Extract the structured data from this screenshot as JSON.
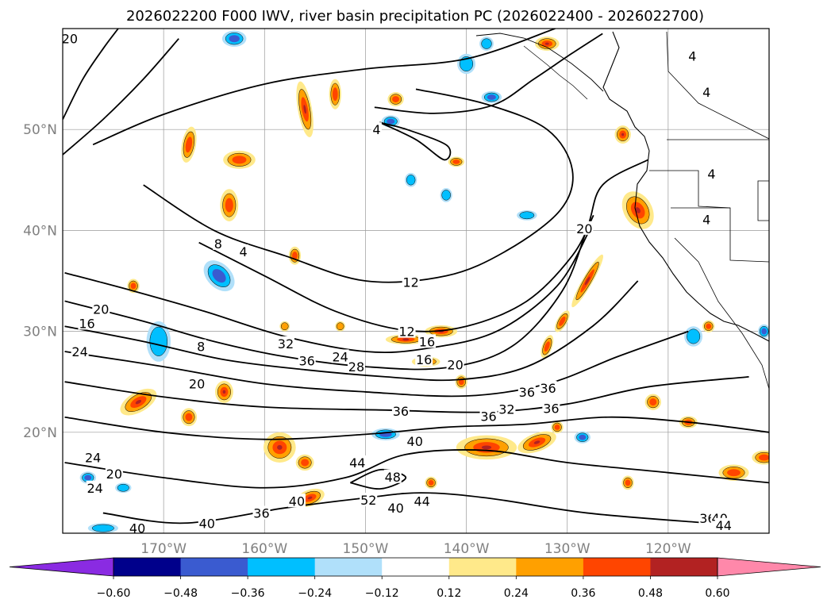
{
  "title": "2026022200 F000 IWV, river basin precipitation PC (2026022400 - 2026022700)",
  "lat_labels": [
    {
      "lat": 50,
      "label": "50°N"
    },
    {
      "lat": 40,
      "label": "40°N"
    },
    {
      "lat": 30,
      "label": "30°N"
    },
    {
      "lat": 20,
      "label": "20°N"
    }
  ],
  "lon_labels": [
    {
      "lon": -170,
      "label": "170°W"
    },
    {
      "lon": -160,
      "label": "160°W"
    },
    {
      "lon": -150,
      "label": "150°W"
    },
    {
      "lon": -140,
      "label": "140°W"
    },
    {
      "lon": -130,
      "label": "130°W"
    },
    {
      "lon": -120,
      "label": "120°W"
    }
  ],
  "colorbar": {
    "colors": [
      "#8a2be2",
      "#00008b",
      "#3a5bd0",
      "#00bfff",
      "#b0e0fa",
      "#ffffff",
      "#ffe98a",
      "#ffa000",
      "#ff4500",
      "#b22222",
      "#ff88aa"
    ],
    "tick_labels": [
      "−0.60",
      "−0.48",
      "−0.36",
      "−0.24",
      "−0.12",
      "0.12",
      "0.24",
      "0.36",
      "0.48",
      "0.60"
    ]
  },
  "contour_labels": [
    {
      "text": "20",
      "lon": -179.3,
      "lat": 59.0
    },
    {
      "text": "4",
      "lon": -148.9,
      "lat": 50.0
    },
    {
      "text": "4",
      "lon": -117.6,
      "lat": 57.3
    },
    {
      "text": "4",
      "lon": -116.2,
      "lat": 53.7
    },
    {
      "text": "4",
      "lon": -115.7,
      "lat": 45.6
    },
    {
      "text": "4",
      "lon": -116.2,
      "lat": 41.1
    },
    {
      "text": "20",
      "lon": -128.3,
      "lat": 40.2
    },
    {
      "text": "12",
      "lon": -145.5,
      "lat": 34.9
    },
    {
      "text": "8",
      "lon": -164.6,
      "lat": 38.7
    },
    {
      "text": "4",
      "lon": -162.1,
      "lat": 37.9
    },
    {
      "text": "12",
      "lon": -145.9,
      "lat": 30.0
    },
    {
      "text": "16",
      "lon": -143.9,
      "lat": 29.0
    },
    {
      "text": "16",
      "lon": -144.2,
      "lat": 27.2
    },
    {
      "text": "20",
      "lon": -141.1,
      "lat": 26.7
    },
    {
      "text": "20",
      "lon": -176.2,
      "lat": 32.2
    },
    {
      "text": "16",
      "lon": -177.6,
      "lat": 30.8
    },
    {
      "text": "24",
      "lon": -178.3,
      "lat": 28.0
    },
    {
      "text": "8",
      "lon": -166.3,
      "lat": 28.5
    },
    {
      "text": "32",
      "lon": -157.9,
      "lat": 28.8
    },
    {
      "text": "36",
      "lon": -155.8,
      "lat": 27.1
    },
    {
      "text": "24",
      "lon": -152.5,
      "lat": 27.5
    },
    {
      "text": "28",
      "lon": -150.9,
      "lat": 26.5
    },
    {
      "text": "20",
      "lon": -166.7,
      "lat": 24.8
    },
    {
      "text": "36",
      "lon": -137.8,
      "lat": 21.6
    },
    {
      "text": "36",
      "lon": -134.0,
      "lat": 24.0
    },
    {
      "text": "36",
      "lon": -131.9,
      "lat": 24.4
    },
    {
      "text": "36",
      "lon": -131.6,
      "lat": 22.4
    },
    {
      "text": "32",
      "lon": -136.0,
      "lat": 22.3
    },
    {
      "text": "36",
      "lon": -146.5,
      "lat": 22.1
    },
    {
      "text": "40",
      "lon": -145.1,
      "lat": 19.1
    },
    {
      "text": "44",
      "lon": -150.8,
      "lat": 17.0
    },
    {
      "text": "48",
      "lon": -147.3,
      "lat": 15.6
    },
    {
      "text": "52",
      "lon": -149.7,
      "lat": 13.3
    },
    {
      "text": "40",
      "lon": -147.0,
      "lat": 12.5
    },
    {
      "text": "44",
      "lon": -144.4,
      "lat": 13.2
    },
    {
      "text": "24",
      "lon": -177.0,
      "lat": 17.5
    },
    {
      "text": "20",
      "lon": -174.9,
      "lat": 15.9
    },
    {
      "text": "24",
      "lon": -176.8,
      "lat": 14.5
    },
    {
      "text": "40",
      "lon": -156.8,
      "lat": 13.2
    },
    {
      "text": "36",
      "lon": -160.3,
      "lat": 12.0
    },
    {
      "text": "40",
      "lon": -165.7,
      "lat": 11.0
    },
    {
      "text": "40",
      "lon": -172.6,
      "lat": 10.5
    },
    {
      "text": "36",
      "lon": -116.1,
      "lat": 11.5
    },
    {
      "text": "40",
      "lon": -114.9,
      "lat": 11.5
    },
    {
      "text": "44",
      "lon": -114.5,
      "lat": 10.8
    }
  ],
  "iwv_contours": [
    {
      "name": "iwv-contour-4-north",
      "points": [
        [
          -149.1,
          52.2
        ],
        [
          -143.2,
          51.6
        ],
        [
          -137.4,
          52.4
        ],
        [
          -133.3,
          55.0
        ],
        [
          -129.6,
          57.5
        ],
        [
          -126.5,
          59.5
        ]
      ]
    },
    {
      "name": "iwv-contour-4-inner",
      "points": [
        [
          -148.6,
          50.7
        ],
        [
          -145.0,
          49.0
        ],
        [
          -142.2,
          47.0
        ],
        [
          -141.9,
          48.4
        ],
        [
          -145.9,
          50.0
        ],
        [
          -148.6,
          50.7
        ]
      ]
    },
    {
      "name": "iwv-contour-8-upper",
      "points": [
        [
          -177.0,
          48.5
        ],
        [
          -170.0,
          51.5
        ],
        [
          -160.0,
          54.5
        ],
        [
          -150.0,
          56.0
        ],
        [
          -140.0,
          57.0
        ],
        [
          -131.2,
          60.0
        ]
      ]
    },
    {
      "name": "iwv-contour-8-loop",
      "points": [
        [
          -172.0,
          44.5
        ],
        [
          -165.0,
          40.0
        ],
        [
          -158.0,
          37.5
        ],
        [
          -150.0,
          35.0
        ],
        [
          -142.0,
          35.5
        ],
        [
          -136.0,
          38.0
        ],
        [
          -130.7,
          42.0
        ],
        [
          -129.5,
          46.0
        ],
        [
          -132.0,
          50.0
        ],
        [
          -138.0,
          52.5
        ],
        [
          -145.0,
          54.0
        ]
      ]
    },
    {
      "name": "iwv-contour-12",
      "points": [
        [
          -166.5,
          38.8
        ],
        [
          -160.0,
          35.5
        ],
        [
          -153.0,
          32.0
        ],
        [
          -146.0,
          30.1
        ],
        [
          -140.0,
          30.5
        ],
        [
          -134.0,
          33.0
        ],
        [
          -129.5,
          37.5
        ],
        [
          -127.4,
          41.5
        ]
      ]
    },
    {
      "name": "iwv-contour-16",
      "points": [
        [
          -179.8,
          35.8
        ],
        [
          -173.0,
          34.0
        ],
        [
          -166.0,
          32.0
        ],
        [
          -158.0,
          29.5
        ],
        [
          -150.0,
          28.0
        ],
        [
          -144.0,
          28.3
        ],
        [
          -137.0,
          30.0
        ],
        [
          -131.0,
          34.5
        ],
        [
          -127.8,
          40.0
        ]
      ]
    },
    {
      "name": "iwv-contour-20",
      "points": [
        [
          -179.8,
          33.0
        ],
        [
          -172.0,
          31.0
        ],
        [
          -165.0,
          29.0
        ],
        [
          -158.0,
          27.5
        ],
        [
          -150.0,
          26.5
        ],
        [
          -142.0,
          26.4
        ],
        [
          -135.5,
          28.5
        ],
        [
          -130.5,
          34.0
        ],
        [
          -128.0,
          40.3
        ],
        [
          -126.5,
          44.5
        ],
        [
          -122.0,
          47.0
        ]
      ]
    },
    {
      "name": "iwv-contour-24",
      "points": [
        [
          -179.8,
          30.5
        ],
        [
          -172.0,
          29.0
        ],
        [
          -164.0,
          27.2
        ],
        [
          -156.0,
          26.2
        ],
        [
          -148.0,
          25.5
        ],
        [
          -141.0,
          25.2
        ],
        [
          -134.0,
          26.5
        ],
        [
          -127.5,
          30.5
        ],
        [
          -123.0,
          35.0
        ]
      ]
    },
    {
      "name": "iwv-contour-28",
      "points": [
        [
          -179.8,
          28.0
        ],
        [
          -170.0,
          26.5
        ],
        [
          -160.0,
          24.8
        ],
        [
          -150.0,
          24.0
        ],
        [
          -140.0,
          23.6
        ],
        [
          -132.0,
          24.8
        ],
        [
          -125.0,
          27.5
        ],
        [
          -118.0,
          30.0
        ]
      ]
    },
    {
      "name": "iwv-contour-32",
      "points": [
        [
          -179.8,
          25.0
        ],
        [
          -170.0,
          23.5
        ],
        [
          -160.0,
          22.5
        ],
        [
          -148.0,
          22.2
        ],
        [
          -138.0,
          22.0
        ],
        [
          -130.0,
          22.8
        ],
        [
          -122.0,
          24.5
        ],
        [
          -112.0,
          25.5
        ]
      ]
    },
    {
      "name": "iwv-contour-36",
      "points": [
        [
          -179.8,
          21.5
        ],
        [
          -170.0,
          20.0
        ],
        [
          -160.0,
          19.3
        ],
        [
          -150.0,
          19.8
        ],
        [
          -142.0,
          20.5
        ],
        [
          -134.0,
          20.8
        ],
        [
          -126.0,
          21.5
        ],
        [
          -118.0,
          21.0
        ],
        [
          -110.0,
          20.0
        ]
      ]
    },
    {
      "name": "iwv-contour-40",
      "points": [
        [
          -179.8,
          17.0
        ],
        [
          -170.0,
          15.5
        ],
        [
          -160.0,
          14.5
        ],
        [
          -152.0,
          15.5
        ],
        [
          -146.0,
          17.8
        ],
        [
          -138.0,
          18.2
        ],
        [
          -130.0,
          17.0
        ],
        [
          -120.0,
          16.0
        ],
        [
          -110.0,
          15.0
        ]
      ]
    },
    {
      "name": "iwv-contour-44",
      "points": [
        [
          -176.0,
          12.0
        ],
        [
          -168.0,
          11.0
        ],
        [
          -158.0,
          12.5
        ],
        [
          -150.0,
          13.5
        ],
        [
          -144.5,
          14.0
        ],
        [
          -138.0,
          13.5
        ],
        [
          -128.0,
          12.0
        ],
        [
          -116.0,
          11.0
        ]
      ]
    },
    {
      "name": "iwv-contour-48",
      "points": [
        [
          -151.5,
          15.0
        ],
        [
          -148.5,
          16.3
        ],
        [
          -146.0,
          15.5
        ],
        [
          -148.5,
          14.4
        ],
        [
          -151.5,
          15.0
        ]
      ]
    },
    {
      "name": "iwv-contour-20-west",
      "points": [
        [
          -180.0,
          51.0
        ],
        [
          -178.0,
          55.0
        ],
        [
          -176.0,
          58.0
        ],
        [
          -174.5,
          60.0
        ]
      ]
    },
    {
      "name": "iwv-contour-16-west",
      "points": [
        [
          -180.0,
          47.5
        ],
        [
          -176.0,
          51.0
        ],
        [
          -172.0,
          55.0
        ],
        [
          -168.5,
          59.0
        ]
      ]
    }
  ],
  "precip_blobs": [
    {
      "lon": -164.5,
      "lat": 35.5,
      "rx": 1.2,
      "ry": 1.8,
      "rot": -45,
      "sign": -1,
      "level": 2
    },
    {
      "lon": -162.5,
      "lat": 47.0,
      "rx": 1.6,
      "ry": 0.9,
      "rot": 0,
      "sign": 1,
      "level": 2
    },
    {
      "lon": -156.0,
      "lat": 52.0,
      "rx": 0.7,
      "ry": 2.8,
      "rot": -10,
      "sign": 1,
      "level": 3
    },
    {
      "lon": -153.0,
      "lat": 53.5,
      "rx": 0.6,
      "ry": 1.5,
      "rot": 0,
      "sign": 1,
      "level": 2
    },
    {
      "lon": -167.5,
      "lat": 48.5,
      "rx": 0.7,
      "ry": 1.8,
      "rot": 10,
      "sign": 1,
      "level": 2
    },
    {
      "lon": -163.5,
      "lat": 42.5,
      "rx": 0.9,
      "ry": 1.6,
      "rot": 0,
      "sign": 1,
      "level": 2
    },
    {
      "lon": -173.0,
      "lat": 34.5,
      "rx": 0.6,
      "ry": 0.7,
      "rot": 0,
      "sign": 1,
      "level": 2
    },
    {
      "lon": -170.5,
      "lat": 29.0,
      "rx": 1.2,
      "ry": 2.0,
      "rot": 0,
      "sign": -1,
      "level": 1
    },
    {
      "lon": -172.5,
      "lat": 23.0,
      "rx": 2.0,
      "ry": 1.0,
      "rot": -30,
      "sign": 1,
      "level": 3
    },
    {
      "lon": -167.5,
      "lat": 21.5,
      "rx": 0.8,
      "ry": 0.9,
      "rot": 0,
      "sign": 1,
      "level": 2
    },
    {
      "lon": -164.0,
      "lat": 24.0,
      "rx": 0.9,
      "ry": 1.1,
      "rot": 0,
      "sign": 1,
      "level": 3
    },
    {
      "lon": -158.5,
      "lat": 18.5,
      "rx": 1.6,
      "ry": 1.5,
      "rot": 0,
      "sign": 1,
      "level": 3
    },
    {
      "lon": -156.0,
      "lat": 17.0,
      "rx": 0.9,
      "ry": 0.8,
      "rot": 0,
      "sign": 1,
      "level": 2
    },
    {
      "lon": -155.5,
      "lat": 13.5,
      "rx": 1.5,
      "ry": 0.8,
      "rot": -20,
      "sign": 1,
      "level": 3
    },
    {
      "lon": -148.0,
      "lat": 19.8,
      "rx": 1.4,
      "ry": 0.6,
      "rot": 0,
      "sign": -1,
      "level": 2
    },
    {
      "lon": -146.0,
      "lat": 29.2,
      "rx": 2.0,
      "ry": 0.5,
      "rot": 0,
      "sign": 1,
      "level": 3
    },
    {
      "lon": -142.5,
      "lat": 30.0,
      "rx": 1.6,
      "ry": 0.6,
      "rot": 0,
      "sign": 1,
      "level": 3
    },
    {
      "lon": -144.0,
      "lat": 27.0,
      "rx": 1.4,
      "ry": 0.5,
      "rot": 0,
      "sign": 1,
      "level": 3
    },
    {
      "lon": -140.5,
      "lat": 25.0,
      "rx": 0.6,
      "ry": 0.7,
      "rot": 0,
      "sign": 1,
      "level": 2
    },
    {
      "lon": -138.0,
      "lat": 18.5,
      "rx": 3.0,
      "ry": 1.2,
      "rot": 0,
      "sign": 1,
      "level": 3
    },
    {
      "lon": -133.0,
      "lat": 19.0,
      "rx": 2.0,
      "ry": 0.9,
      "rot": -20,
      "sign": 1,
      "level": 3
    },
    {
      "lon": -131.0,
      "lat": 20.5,
      "rx": 0.6,
      "ry": 0.6,
      "rot": 0,
      "sign": 1,
      "level": 2
    },
    {
      "lon": -128.0,
      "lat": 35.0,
      "rx": 0.5,
      "ry": 3.0,
      "rot": 30,
      "sign": 1,
      "level": 3
    },
    {
      "lon": -130.5,
      "lat": 31.0,
      "rx": 0.5,
      "ry": 1.2,
      "rot": 30,
      "sign": 1,
      "level": 2
    },
    {
      "lon": -132.0,
      "lat": 28.5,
      "rx": 0.5,
      "ry": 1.2,
      "rot": 20,
      "sign": 1,
      "level": 2
    },
    {
      "lon": -123.0,
      "lat": 42.0,
      "rx": 1.4,
      "ry": 2.0,
      "rot": -30,
      "sign": 1,
      "level": 3
    },
    {
      "lon": -124.5,
      "lat": 49.5,
      "rx": 0.8,
      "ry": 0.9,
      "rot": 0,
      "sign": 1,
      "level": 3
    },
    {
      "lon": -132.0,
      "lat": 58.5,
      "rx": 1.2,
      "ry": 0.7,
      "rot": 0,
      "sign": 1,
      "level": 3
    },
    {
      "lon": -141.0,
      "lat": 46.8,
      "rx": 0.8,
      "ry": 0.5,
      "rot": 0,
      "sign": 1,
      "level": 2
    },
    {
      "lon": -147.0,
      "lat": 53.0,
      "rx": 0.8,
      "ry": 0.7,
      "rot": 0,
      "sign": 1,
      "level": 2
    },
    {
      "lon": -137.5,
      "lat": 53.2,
      "rx": 1.0,
      "ry": 0.6,
      "rot": 0,
      "sign": -1,
      "level": 2
    },
    {
      "lon": -147.5,
      "lat": 50.8,
      "rx": 0.9,
      "ry": 0.6,
      "rot": 0,
      "sign": -1,
      "level": 2
    },
    {
      "lon": -145.5,
      "lat": 45.0,
      "rx": 0.6,
      "ry": 0.7,
      "rot": 0,
      "sign": -1,
      "level": 1
    },
    {
      "lon": -142.0,
      "lat": 43.5,
      "rx": 0.6,
      "ry": 0.7,
      "rot": 0,
      "sign": -1,
      "level": 1
    },
    {
      "lon": -134.0,
      "lat": 41.5,
      "rx": 1.0,
      "ry": 0.5,
      "rot": 0,
      "sign": -1,
      "level": 1
    },
    {
      "lon": -140.0,
      "lat": 56.5,
      "rx": 0.9,
      "ry": 1.0,
      "rot": 0,
      "sign": -1,
      "level": 1
    },
    {
      "lon": -138.0,
      "lat": 58.5,
      "rx": 0.7,
      "ry": 0.7,
      "rot": 0,
      "sign": -1,
      "level": 1
    },
    {
      "lon": -163.0,
      "lat": 59.0,
      "rx": 1.2,
      "ry": 0.8,
      "rot": 0,
      "sign": -1,
      "level": 2
    },
    {
      "lon": -177.5,
      "lat": 15.5,
      "rx": 0.8,
      "ry": 0.6,
      "rot": 0,
      "sign": -1,
      "level": 2
    },
    {
      "lon": -174.0,
      "lat": 14.5,
      "rx": 0.8,
      "ry": 0.5,
      "rot": 0,
      "sign": -1,
      "level": 1
    },
    {
      "lon": -176.0,
      "lat": 10.5,
      "rx": 1.5,
      "ry": 0.5,
      "rot": 0,
      "sign": -1,
      "level": 1
    },
    {
      "lon": -128.5,
      "lat": 19.5,
      "rx": 0.8,
      "ry": 0.6,
      "rot": 0,
      "sign": -1,
      "level": 2
    },
    {
      "lon": -117.5,
      "lat": 29.5,
      "rx": 0.9,
      "ry": 1.0,
      "rot": 0,
      "sign": -1,
      "level": 1
    },
    {
      "lon": -110.5,
      "lat": 30.0,
      "rx": 0.6,
      "ry": 0.7,
      "rot": 0,
      "sign": -1,
      "level": 2
    },
    {
      "lon": -113.5,
      "lat": 16.0,
      "rx": 1.5,
      "ry": 0.8,
      "rot": 0,
      "sign": 1,
      "level": 2
    },
    {
      "lon": -110.5,
      "lat": 17.5,
      "rx": 1.2,
      "ry": 0.7,
      "rot": 0,
      "sign": 1,
      "level": 2
    },
    {
      "lon": -118.0,
      "lat": 21.0,
      "rx": 0.9,
      "ry": 0.6,
      "rot": 0,
      "sign": 1,
      "level": 2
    },
    {
      "lon": -124.0,
      "lat": 15.0,
      "rx": 0.6,
      "ry": 0.7,
      "rot": 0,
      "sign": 1,
      "level": 2
    },
    {
      "lon": -121.5,
      "lat": 23.0,
      "rx": 0.8,
      "ry": 0.8,
      "rot": 0,
      "sign": 1,
      "level": 2
    },
    {
      "lon": -116.0,
      "lat": 30.5,
      "rx": 0.6,
      "ry": 0.6,
      "rot": 0,
      "sign": 1,
      "level": 2
    },
    {
      "lon": -143.5,
      "lat": 15.0,
      "rx": 0.6,
      "ry": 0.6,
      "rot": 0,
      "sign": 1,
      "level": 2
    },
    {
      "lon": -157.0,
      "lat": 37.5,
      "rx": 0.6,
      "ry": 0.9,
      "rot": 0,
      "sign": 1,
      "level": 2
    },
    {
      "lon": -158.0,
      "lat": 30.5,
      "rx": 0.5,
      "ry": 0.5,
      "rot": 0,
      "sign": 1,
      "level": 1
    },
    {
      "lon": -152.5,
      "lat": 30.5,
      "rx": 0.5,
      "ry": 0.5,
      "rot": 0,
      "sign": 1,
      "level": 1
    }
  ]
}
